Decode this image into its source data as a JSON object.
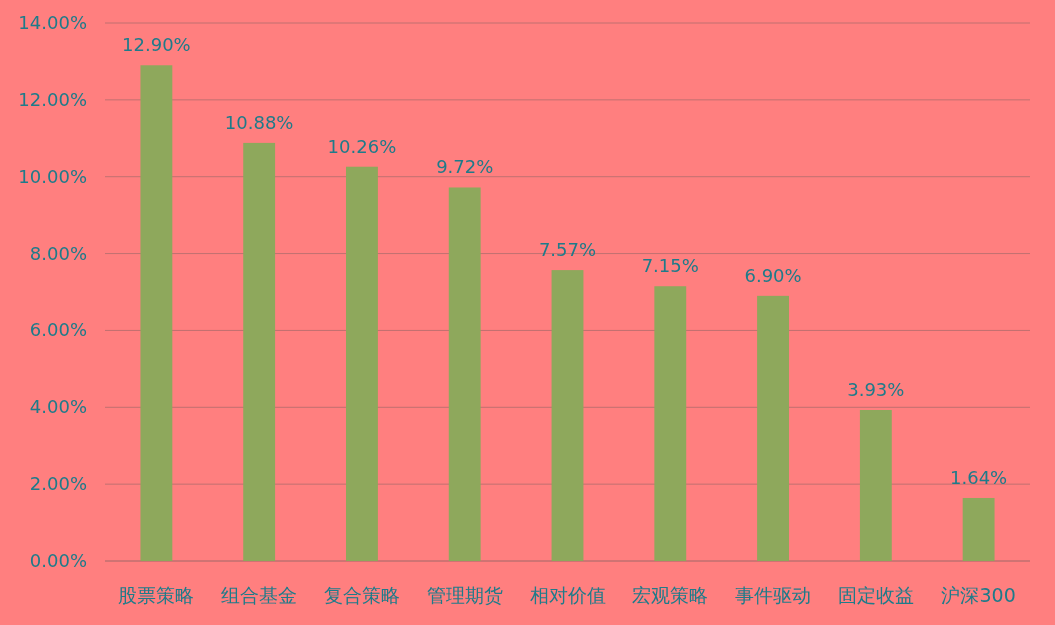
{
  "chart_data": {
    "type": "bar",
    "categories": [
      "股票策略",
      "组合基金",
      "复合策略",
      "管理期货",
      "相对价值",
      "宏观策略",
      "事件驱动",
      "固定收益",
      "沪深300"
    ],
    "values": [
      12.9,
      10.88,
      10.26,
      9.72,
      7.57,
      7.15,
      6.9,
      3.93,
      1.64
    ],
    "value_labels": [
      "12.90%",
      "10.88%",
      "10.26%",
      "9.72%",
      "7.57%",
      "7.15%",
      "6.90%",
      "3.93%",
      "1.64%"
    ],
    "color": "#8ea85c",
    "ylim": [
      0,
      14
    ],
    "yticks": [
      {
        "value": 0,
        "label": "0.00%"
      },
      {
        "value": 2,
        "label": "2.00%"
      },
      {
        "value": 4,
        "label": "4.00%"
      },
      {
        "value": 6,
        "label": "6.00%"
      },
      {
        "value": 8,
        "label": "8.00%"
      },
      {
        "value": 10,
        "label": "10.00%"
      },
      {
        "value": 12,
        "label": "12.00%"
      },
      {
        "value": 14,
        "label": "14.00%"
      }
    ],
    "grid": "y"
  }
}
